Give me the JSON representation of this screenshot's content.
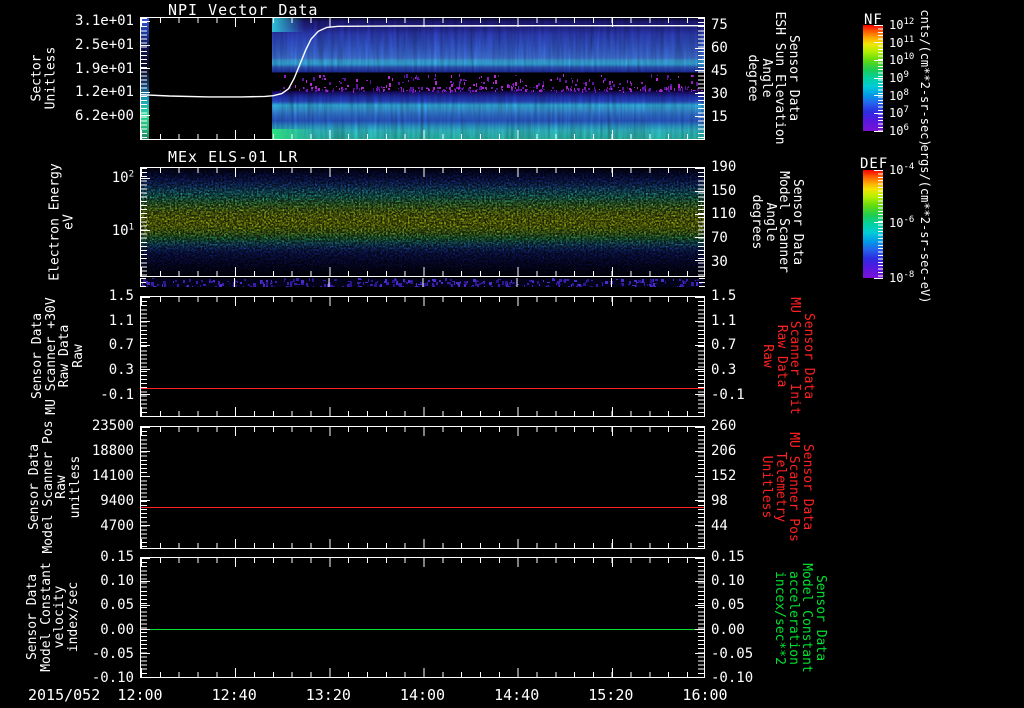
{
  "figure": {
    "background": "#000000",
    "axis_color": "#ffffff",
    "red": "#ff2020",
    "green": "#00e030"
  },
  "chart_data": {
    "type": "heatmap",
    "layout": "5 stacked time-series panels, shared time axis, 2 spectrogram colorbars at right",
    "x": {
      "date_label": "2015/052",
      "start": "12:00",
      "end": "16:00",
      "tick_labels": [
        "12:00",
        "12:40",
        "13:20",
        "14:00",
        "14:40",
        "15:20",
        "16:00"
      ],
      "minor_tick_minutes": 8
    },
    "panels": [
      {
        "type": "heatmap",
        "title": "NPI Vector Data",
        "y_left": {
          "label_lines": [
            "Sector",
            "Unitless"
          ],
          "range": [
            0,
            32
          ],
          "ticks": [
            {
              "label": "3.1e+01",
              "f": 0.031
            },
            {
              "label": "2.5e+01",
              "f": 0.225
            },
            {
              "label": "1.9e+01",
              "f": 0.419
            },
            {
              "label": "1.2e+01",
              "f": 0.6125
            },
            {
              "label": "6.2e+00",
              "f": 0.806
            }
          ]
        },
        "y_right": {
          "label_lines": [
            "Sensor Data",
            "ESH Sun Elevation",
            "Angle",
            "degree"
          ],
          "range": [
            0,
            80
          ],
          "ticks": [
            {
              "label": "75",
              "f": 0.0625
            },
            {
              "label": "60",
              "f": 0.25
            },
            {
              "label": "45",
              "f": 0.4375
            },
            {
              "label": "30",
              "f": 0.625
            },
            {
              "label": "15",
              "f": 0.8125
            }
          ]
        },
        "no_data_until_f": 0.232,
        "bands": [
          [
            0,
            "#0c0c34"
          ],
          [
            0.03,
            "#201c7e"
          ],
          [
            0.08,
            "#262696"
          ],
          [
            0.13,
            "#2f3fbe"
          ],
          [
            0.2,
            "#3352cc"
          ],
          [
            0.27,
            "#3a64d8"
          ],
          [
            0.33,
            "#4278e2"
          ],
          [
            0.35,
            "#3fa6e8"
          ],
          [
            0.38,
            "#38b2ea"
          ],
          [
            0.41,
            "#2f58c4"
          ],
          [
            0.445,
            "#2132aa"
          ],
          [
            0.455,
            "#000000"
          ],
          [
            0.595,
            "#000000"
          ],
          [
            0.61,
            "#1a0a66"
          ],
          [
            0.65,
            "#2130b2"
          ],
          [
            0.69,
            "#2b4ecb"
          ],
          [
            0.72,
            "#32b6e8"
          ],
          [
            0.755,
            "#3a9ee4"
          ],
          [
            0.8,
            "#3276da"
          ],
          [
            0.85,
            "#2c5ed2"
          ],
          [
            0.89,
            "#2e9cd8"
          ],
          [
            0.93,
            "#34c4d0"
          ],
          [
            1,
            "#2cc2b2"
          ]
        ],
        "left_strip": [
          [
            0,
            "#3a55d8"
          ],
          [
            0.12,
            "#1c3a9e"
          ],
          [
            0.25,
            "#101450"
          ],
          [
            0.42,
            "#0a0a20"
          ],
          [
            0.55,
            "#123a6e"
          ],
          [
            0.68,
            "#1e9ec0"
          ],
          [
            0.8,
            "#2ed896"
          ],
          [
            0.92,
            "#27b27a"
          ],
          [
            1,
            "#1e8a60"
          ]
        ],
        "overlay_line": {
          "color": "#ffffff",
          "description": "ESH Sun Elevation angle: flat near 12 (left axis) until ~13:00, sigmoid rise to ~30 by ~13:20, flat after",
          "points": [
            [
              0,
              0.634
            ],
            [
              0.05,
              0.645
            ],
            [
              0.12,
              0.652
            ],
            [
              0.18,
              0.652
            ],
            [
              0.22,
              0.648
            ],
            [
              0.235,
              0.642
            ],
            [
              0.25,
              0.625
            ],
            [
              0.262,
              0.585
            ],
            [
              0.272,
              0.5
            ],
            [
              0.282,
              0.385
            ],
            [
              0.292,
              0.27
            ],
            [
              0.302,
              0.175
            ],
            [
              0.315,
              0.11
            ],
            [
              0.33,
              0.078
            ],
            [
              0.35,
              0.069
            ],
            [
              0.45,
              0.066
            ],
            [
              0.7,
              0.064
            ],
            [
              1,
              0.064
            ]
          ]
        },
        "speckles": [
          {
            "seed": 7,
            "count": 150,
            "colors": [
              "#b42cd0",
              "#8a1cc0",
              "#5c14a0"
            ],
            "x0": 0.245,
            "x1": 0.995,
            "y0": 0.46,
            "y1": 0.585,
            "w": 2,
            "h": 4
          },
          {
            "seed": 21,
            "count": 210,
            "colors": [
              "#a428c8",
              "#6c18b0",
              "#47108c"
            ],
            "x0": 0.245,
            "x1": 0.995,
            "y0": 0.565,
            "y1": 0.6,
            "w": 2,
            "h": 3
          }
        ]
      },
      {
        "type": "heatmap",
        "title": "MEx ELS-01 LR",
        "y_left": {
          "label_lines": [
            "Electron Energy",
            "eV"
          ],
          "scale": "log",
          "ticks": [
            {
              "label": "10",
              "exp": "2",
              "f": 0.1
            },
            {
              "label": "10",
              "exp": "1",
              "f": 0.58
            }
          ]
        },
        "y_right": {
          "label_lines": [
            "Sensor Data",
            "Model Scanner",
            "Angle",
            "degrees"
          ],
          "ticks": [
            {
              "label": "190",
              "f": 0.0
            },
            {
              "label": "150",
              "f": 0.215
            },
            {
              "label": "110",
              "f": 0.43
            },
            {
              "label": "70",
              "f": 0.645
            },
            {
              "label": "30",
              "f": 0.86
            }
          ]
        },
        "description": "Electron energy flux spectrogram; bright yellow-green band near 15-30 eV across whole interval, noisy blue/violet above and below",
        "bands": [
          [
            0,
            "#04041a"
          ],
          [
            0.05,
            "#0d1668"
          ],
          [
            0.11,
            "#1a34ae"
          ],
          [
            0.16,
            "#2562cc"
          ],
          [
            0.21,
            "#2ba6d8"
          ],
          [
            0.27,
            "#36cfae"
          ],
          [
            0.33,
            "#6cd962"
          ],
          [
            0.4,
            "#b2e62b"
          ],
          [
            0.47,
            "#d2f013"
          ],
          [
            0.54,
            "#ccee16"
          ],
          [
            0.6,
            "#8ed838"
          ],
          [
            0.655,
            "#3cc878"
          ],
          [
            0.7,
            "#2e9cc4"
          ],
          [
            0.745,
            "#2356c4"
          ],
          [
            0.79,
            "#1a2a9e"
          ],
          [
            0.86,
            "#111670"
          ],
          [
            0.93,
            "#090a40"
          ],
          [
            1,
            "#04041c"
          ]
        ],
        "bottom_strip_speckles": {
          "seed": 41,
          "count": 330,
          "colors": [
            "#4a2cc8",
            "#3a1ca8",
            "#2a1488"
          ],
          "x0": 0,
          "x1": 1,
          "y0": 0,
          "y1": 1,
          "w": 3,
          "h": 4
        }
      },
      {
        "type": "line",
        "title": "",
        "y_left": {
          "label_lines": [
            "Sensor Data",
            "MU Scanner +30V",
            "Raw Data",
            "Raw"
          ],
          "range": [
            -0.46,
            1.5
          ],
          "ticks": [
            {
              "label": "1.5",
              "f": 0.0
            },
            {
              "label": "1.1",
              "f": 0.204
            },
            {
              "label": "0.7",
              "f": 0.408
            },
            {
              "label": "0.3",
              "f": 0.612
            },
            {
              "label": "-0.1",
              "f": 0.817
            }
          ]
        },
        "y_right": {
          "label_lines": [
            "Sensor Data",
            "MU Scanner Init",
            "Raw Data",
            "Raw"
          ],
          "ticks": [
            {
              "label": "1.5",
              "f": 0.0
            },
            {
              "label": "1.1",
              "f": 0.204
            },
            {
              "label": "0.7",
              "f": 0.408
            },
            {
              "label": "0.3",
              "f": 0.612
            },
            {
              "label": "-0.1",
              "f": 0.817
            }
          ]
        },
        "series": [
          {
            "name": "MU Scanner +30V Raw",
            "color": "#ff2020",
            "value": 0.0,
            "f": 0.765
          }
        ]
      },
      {
        "type": "line",
        "title": "",
        "y_left": {
          "label_lines": [
            "Sensor Data",
            "Model Scanner Pos",
            "Raw",
            "unitless"
          ],
          "range": [
            0,
            23500
          ],
          "ticks": [
            {
              "label": "23500",
              "f": 0.0
            },
            {
              "label": "18800",
              "f": 0.203
            },
            {
              "label": "14100",
              "f": 0.406
            },
            {
              "label": "9400",
              "f": 0.609
            },
            {
              "label": "4700",
              "f": 0.812
            }
          ]
        },
        "y_right": {
          "label_lines": [
            "Sensor Data",
            "MU Scanner Pos",
            "Telemetry",
            "Unitless"
          ],
          "range": [
            0,
            260
          ],
          "ticks": [
            {
              "label": "260",
              "f": 0.0
            },
            {
              "label": "206",
              "f": 0.203
            },
            {
              "label": "152",
              "f": 0.406
            },
            {
              "label": "98",
              "f": 0.609
            },
            {
              "label": "44",
              "f": 0.812
            }
          ]
        },
        "series": [
          {
            "name": "Model Scanner Pos Raw",
            "color": "#ff2020",
            "value": 7900,
            "f": 0.664
          }
        ]
      },
      {
        "type": "line",
        "title": "",
        "y_left": {
          "label_lines": [
            "Sensor Data",
            "Model Constant",
            "velocity",
            "index/sec"
          ],
          "range": [
            -0.1,
            0.15
          ],
          "ticks": [
            {
              "label": "0.15",
              "f": 0.0
            },
            {
              "label": "0.10",
              "f": 0.2
            },
            {
              "label": "0.05",
              "f": 0.4
            },
            {
              "label": "0.00",
              "f": 0.6
            },
            {
              "label": "-0.05",
              "f": 0.8
            },
            {
              "label": "-0.10",
              "f": 1.0
            }
          ]
        },
        "y_right": {
          "label_lines": [
            "Sensor Data",
            "Model Constant",
            "acceleration",
            "incex/sec**2"
          ],
          "ticks": [
            {
              "label": "0.15",
              "f": 0.0
            },
            {
              "label": "0.10",
              "f": 0.2
            },
            {
              "label": "0.05",
              "f": 0.4
            },
            {
              "label": "0.00",
              "f": 0.6
            },
            {
              "label": "-0.05",
              "f": 0.8
            },
            {
              "label": "-0.10",
              "f": 1.0
            }
          ]
        },
        "series": [
          {
            "name": "Model Constant velocity",
            "color": "#00e030",
            "value": 0.0,
            "f": 0.6
          }
        ]
      }
    ],
    "colorbars": [
      {
        "title": "NF",
        "units": "cnts/(cm**2-sr-sec)",
        "ticks": [
          {
            "label": "10",
            "exp": "12",
            "f": 0.0
          },
          {
            "label": "10",
            "exp": "11",
            "f": 0.1667
          },
          {
            "label": "10",
            "exp": "10",
            "f": 0.3333
          },
          {
            "label": "10",
            "exp": "9",
            "f": 0.5
          },
          {
            "label": "10",
            "exp": "8",
            "f": 0.6667
          },
          {
            "label": "10",
            "exp": "7",
            "f": 0.8333
          },
          {
            "label": "10",
            "exp": "6",
            "f": 1.0
          }
        ],
        "gradient": [
          [
            0,
            "#fb0000"
          ],
          [
            0.06,
            "#ff5a00"
          ],
          [
            0.12,
            "#ffa800"
          ],
          [
            0.18,
            "#f2e600"
          ],
          [
            0.25,
            "#b4ee00"
          ],
          [
            0.33,
            "#62dc0e"
          ],
          [
            0.42,
            "#1ecc52"
          ],
          [
            0.5,
            "#00d2a0"
          ],
          [
            0.58,
            "#00ccd8"
          ],
          [
            0.66,
            "#009ce8"
          ],
          [
            0.74,
            "#2562ec"
          ],
          [
            0.82,
            "#2b2ce0"
          ],
          [
            0.9,
            "#5418e0"
          ],
          [
            1,
            "#7c12d6"
          ]
        ]
      },
      {
        "title": "DEF",
        "units": "ergs/(cm**2-sr-sec-eV)",
        "ticks": [
          {
            "label": "10",
            "exp": "-4",
            "f": 0.0
          },
          {
            "label": "10",
            "exp": "-6",
            "f": 0.49
          },
          {
            "label": "10",
            "exp": "-8",
            "f": 1.0
          }
        ],
        "gradient": [
          [
            0,
            "#fb0000"
          ],
          [
            0.06,
            "#ff5a00"
          ],
          [
            0.12,
            "#ffa800"
          ],
          [
            0.18,
            "#f2e600"
          ],
          [
            0.25,
            "#b4ee00"
          ],
          [
            0.33,
            "#62dc0e"
          ],
          [
            0.42,
            "#1ecc52"
          ],
          [
            0.5,
            "#00d2a0"
          ],
          [
            0.58,
            "#00ccd8"
          ],
          [
            0.66,
            "#009ce8"
          ],
          [
            0.74,
            "#2562ec"
          ],
          [
            0.82,
            "#2b2ce0"
          ],
          [
            0.9,
            "#5418e0"
          ],
          [
            1,
            "#7c12d6"
          ]
        ]
      }
    ]
  }
}
